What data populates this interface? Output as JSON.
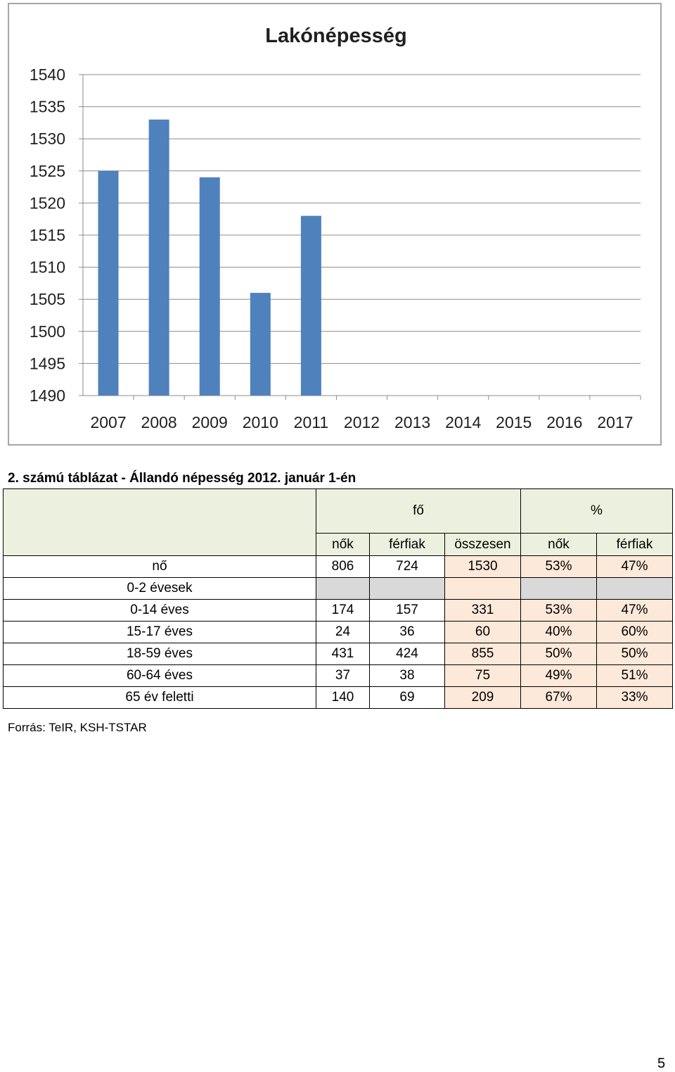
{
  "chart_data": {
    "type": "bar",
    "title": "Lakónépesség",
    "categories": [
      "2007",
      "2008",
      "2009",
      "2010",
      "2011",
      "2012",
      "2013",
      "2014",
      "2015",
      "2016",
      "2017"
    ],
    "values": [
      1525,
      1533,
      1524,
      1506,
      1518,
      null,
      null,
      null,
      null,
      null,
      null
    ],
    "ylim": [
      1490,
      1540
    ],
    "yticks": [
      1540,
      1535,
      1530,
      1525,
      1520,
      1515,
      1510,
      1505,
      1500,
      1495,
      1490
    ],
    "grid": true,
    "bar_color": "#4f81bd"
  },
  "table": {
    "caption": "2. számú táblázat - Állandó népesség 2012. január 1-én",
    "group_headers": {
      "fo": "fő",
      "pct": "%"
    },
    "columns": [
      "nők",
      "férfiak",
      "összesen",
      "nők",
      "férfiak"
    ],
    "rows": [
      {
        "label": "nő",
        "values": [
          "806",
          "724",
          "1530",
          "53%",
          "47%"
        ]
      },
      {
        "label": "0-2 évesek",
        "values": [
          "",
          "",
          "",
          "",
          ""
        ]
      },
      {
        "label": "0-14 éves",
        "values": [
          "174",
          "157",
          "331",
          "53%",
          "47%"
        ]
      },
      {
        "label": "15-17 éves",
        "values": [
          "24",
          "36",
          "60",
          "40%",
          "60%"
        ]
      },
      {
        "label": "18-59 éves",
        "values": [
          "431",
          "424",
          "855",
          "50%",
          "50%"
        ]
      },
      {
        "label": "60-64 éves",
        "values": [
          "37",
          "38",
          "75",
          "49%",
          "51%"
        ]
      },
      {
        "label": "65 év feletti",
        "values": [
          "140",
          "69",
          "209",
          "67%",
          "33%"
        ]
      }
    ]
  },
  "source_note": "Forrás: TeIR, KSH-TSTAR",
  "page_number": "5"
}
